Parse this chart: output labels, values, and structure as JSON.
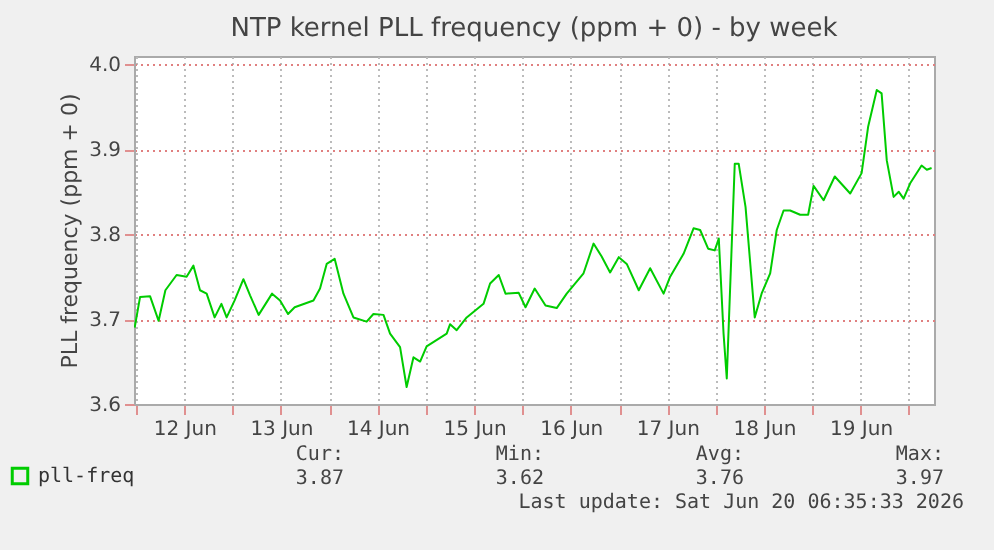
{
  "chart_data": {
    "type": "line",
    "title": "NTP kernel PLL frequency (ppm + 0) - by week",
    "ylabel": "PLL frequency (ppm + 0)",
    "x": [
      "2026-06-11T23:40",
      "2026-06-12T01:00",
      "2026-06-12T03:29",
      "2026-06-12T05:37",
      "2026-06-12T07:18",
      "2026-06-12T10:05",
      "2026-06-12T12:34",
      "2026-06-12T14:16",
      "2026-06-12T15:54",
      "2026-06-12T17:33",
      "2026-06-12T19:32",
      "2026-06-12T21:13",
      "2026-06-12T22:31",
      "2026-06-13T00:30",
      "2026-06-13T02:41",
      "2026-06-13T04:20",
      "2026-06-13T06:28",
      "2026-06-13T09:48",
      "2026-06-13T11:47",
      "2026-06-13T13:46",
      "2026-06-13T15:25",
      "2026-06-13T20:05",
      "2026-06-13T21:43",
      "2026-06-13T23:22",
      "2026-06-14T01:21",
      "2026-06-14T03:32",
      "2026-06-14T06:01",
      "2026-06-14T09:18",
      "2026-06-14T10:59",
      "2026-06-14T13:29",
      "2026-06-14T15:07",
      "2026-06-14T17:36",
      "2026-06-14T19:14",
      "2026-06-14T20:56",
      "2026-06-14T22:35",
      "2026-06-15T00:12",
      "2026-06-15T05:11",
      "2026-06-15T06:02",
      "2026-06-15T07:40",
      "2026-06-15T10:09",
      "2026-06-15T14:20",
      "2026-06-15T15:58",
      "2026-06-15T18:07",
      "2026-06-15T19:48",
      "2026-06-15T23:05",
      "2026-06-16T00:46",
      "2026-06-16T03:03",
      "2026-06-16T05:44",
      "2026-06-16T08:31",
      "2026-06-16T11:00",
      "2026-06-16T15:11",
      "2026-06-16T17:40",
      "2026-06-16T19:39",
      "2026-06-16T21:47",
      "2026-06-16T23:56",
      "2026-06-17T01:55",
      "2026-06-17T04:54",
      "2026-06-17T07:44",
      "2026-06-17T11:04",
      "2026-06-17T12:42",
      "2026-06-17T16:02",
      "2026-06-17T18:31",
      "2026-06-17T20:09",
      "2026-06-17T22:08",
      "2026-06-17T23:47",
      "2026-06-18T00:47",
      "2026-06-18T01:58",
      "2026-06-18T02:46",
      "2026-06-18T04:45",
      "2026-06-18T05:44",
      "2026-06-18T07:26",
      "2026-06-18T09:43",
      "2026-06-18T11:25",
      "2026-06-18T13:33",
      "2026-06-18T15:11",
      "2026-06-18T16:53",
      "2026-06-18T18:31",
      "2026-06-18T21:00",
      "2026-06-18T22:59",
      "2026-06-19T00:20",
      "2026-06-19T02:49",
      "2026-06-19T05:36",
      "2026-06-19T09:26",
      "2026-06-19T12:16",
      "2026-06-19T13:54",
      "2026-06-19T16:02",
      "2026-06-19T17:14",
      "2026-06-19T18:31",
      "2026-06-19T20:13",
      "2026-06-19T21:30",
      "2026-06-19T22:42",
      "2026-06-20T00:20",
      "2026-06-20T03:10",
      "2026-06-20T04:28",
      "2026-06-20T05:39"
    ],
    "series": [
      {
        "name": "pll-freq",
        "color": "#00cc00",
        "values": [
          3.69,
          3.726,
          3.727,
          3.698,
          3.734,
          3.752,
          3.75,
          3.763,
          3.734,
          3.73,
          3.702,
          3.718,
          3.702,
          3.722,
          3.747,
          3.728,
          3.705,
          3.73,
          3.722,
          3.706,
          3.714,
          3.722,
          3.736,
          3.765,
          3.771,
          3.73,
          3.702,
          3.697,
          3.706,
          3.705,
          3.683,
          3.667,
          3.62,
          3.655,
          3.65,
          3.668,
          3.683,
          3.694,
          3.687,
          3.702,
          3.718,
          3.742,
          3.752,
          3.73,
          3.731,
          3.714,
          3.736,
          3.716,
          3.713,
          3.73,
          3.754,
          3.789,
          3.774,
          3.755,
          3.773,
          3.765,
          3.734,
          3.76,
          3.73,
          3.75,
          3.777,
          3.807,
          3.805,
          3.783,
          3.781,
          3.795,
          3.683,
          3.63,
          3.883,
          3.883,
          3.832,
          3.702,
          3.73,
          3.754,
          3.805,
          3.828,
          3.828,
          3.823,
          3.823,
          3.857,
          3.84,
          3.868,
          3.848,
          3.872,
          3.927,
          3.97,
          3.966,
          3.887,
          3.844,
          3.85,
          3.842,
          3.86,
          3.881,
          3.876,
          3.878
        ]
      }
    ],
    "xlim": [
      "2026-06-11T23:30",
      "2026-06-20T06:15"
    ],
    "xticks": [
      {
        "value": "2026-06-12T00:00",
        "label": null
      },
      {
        "value": "2026-06-12T12:00",
        "label": "12 Jun"
      },
      {
        "value": "2026-06-13T00:00",
        "label": null
      },
      {
        "value": "2026-06-13T12:00",
        "label": "13 Jun"
      },
      {
        "value": "2026-06-14T00:00",
        "label": null
      },
      {
        "value": "2026-06-14T12:00",
        "label": "14 Jun"
      },
      {
        "value": "2026-06-15T00:00",
        "label": null
      },
      {
        "value": "2026-06-15T12:00",
        "label": "15 Jun"
      },
      {
        "value": "2026-06-16T00:00",
        "label": null
      },
      {
        "value": "2026-06-16T12:00",
        "label": "16 Jun"
      },
      {
        "value": "2026-06-17T00:00",
        "label": null
      },
      {
        "value": "2026-06-17T12:00",
        "label": "17 Jun"
      },
      {
        "value": "2026-06-18T00:00",
        "label": null
      },
      {
        "value": "2026-06-18T12:00",
        "label": "18 Jun"
      },
      {
        "value": "2026-06-19T00:00",
        "label": null
      },
      {
        "value": "2026-06-19T12:00",
        "label": "19 Jun"
      },
      {
        "value": "2026-06-20T00:00",
        "label": null
      }
    ],
    "ylim": [
      3.6,
      4.01
    ],
    "yticks": [
      {
        "value": 3.6,
        "label": "3.6"
      },
      {
        "value": 3.7,
        "label": "3.7"
      },
      {
        "value": 3.8,
        "label": "3.8"
      },
      {
        "value": 3.9,
        "label": "3.9"
      },
      {
        "value": 4.0,
        "label": "4.0"
      }
    ],
    "grid": true,
    "legend": "bottom",
    "marker": "none",
    "line_style": "solid",
    "annotations": [
      "Cur:",
      "Min:",
      "Avg:",
      "Max:",
      "3.87",
      "3.62",
      "3.76",
      "3.97",
      "Last update: Sat Jun 20 06:35:33 2026"
    ]
  }
}
